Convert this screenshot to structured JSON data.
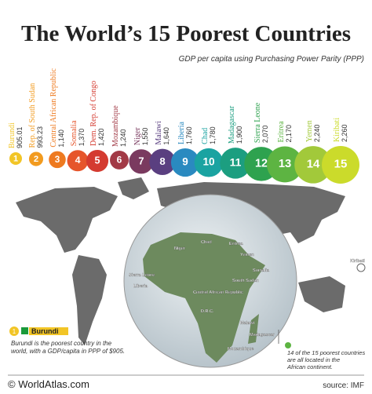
{
  "chart_data": {
    "type": "bubble",
    "title": "The World’s 15 Poorest Countries",
    "subtitle": "GDP per capita using Purchasing Power Parity (PPP)",
    "categories": [
      "Burundi",
      "Rep. of South Sudan",
      "Central African Republic",
      "Somalia",
      "Dem. Rep. of Congo",
      "Mozambique",
      "Niger",
      "Malawi",
      "Liberia",
      "Chad",
      "Madagascar",
      "Sierra Leone",
      "Eritrea",
      "Yemen",
      "Kiribati"
    ],
    "values": [
      905.01,
      993.23,
      1140,
      1370,
      1420,
      1240,
      1550,
      1640,
      1760,
      1780,
      1900,
      2070,
      2170,
      2240,
      2260
    ],
    "value_labels": [
      "905.01",
      "993.23",
      "1,140",
      "1,370",
      "1,420",
      "1,240",
      "1,550",
      "1,640",
      "1,760",
      "1,780",
      "1,900",
      "2,070",
      "2,170",
      "2,240",
      "2,260"
    ],
    "ranks": [
      1,
      2,
      3,
      4,
      5,
      6,
      7,
      8,
      9,
      10,
      11,
      12,
      13,
      14,
      15
    ],
    "colors": [
      "#f2c526",
      "#f29b1f",
      "#ee7a20",
      "#e6552b",
      "#d43b30",
      "#a23a46",
      "#7a3a5f",
      "#5a3f80",
      "#2a8ac0",
      "#1aa3a1",
      "#1c9e80",
      "#2ea24f",
      "#5db442",
      "#a2c93a",
      "#cbdb2b"
    ]
  },
  "map": {
    "labels": [
      "Niger",
      "Chad",
      "Eritrea",
      "Yemen",
      "Somalia",
      "South Sudan",
      "Sierra Leone",
      "Liberia",
      "Central African Republic",
      "D.R.C.",
      "Malawi",
      "Madagascar",
      "Mozambique",
      "Kiribati"
    ]
  },
  "callout": {
    "rank": 1,
    "country": "Burundi",
    "text_lines": [
      "Burundi is the poorest country in the",
      "world, with a GDP/capita in PPP of $905."
    ]
  },
  "note": {
    "text_lines": [
      "14 of the 15 poorest countries",
      "are all located in the",
      "African continent."
    ]
  },
  "footer": {
    "brand": "© WorldAtlas.com",
    "source": "source: IMF"
  }
}
